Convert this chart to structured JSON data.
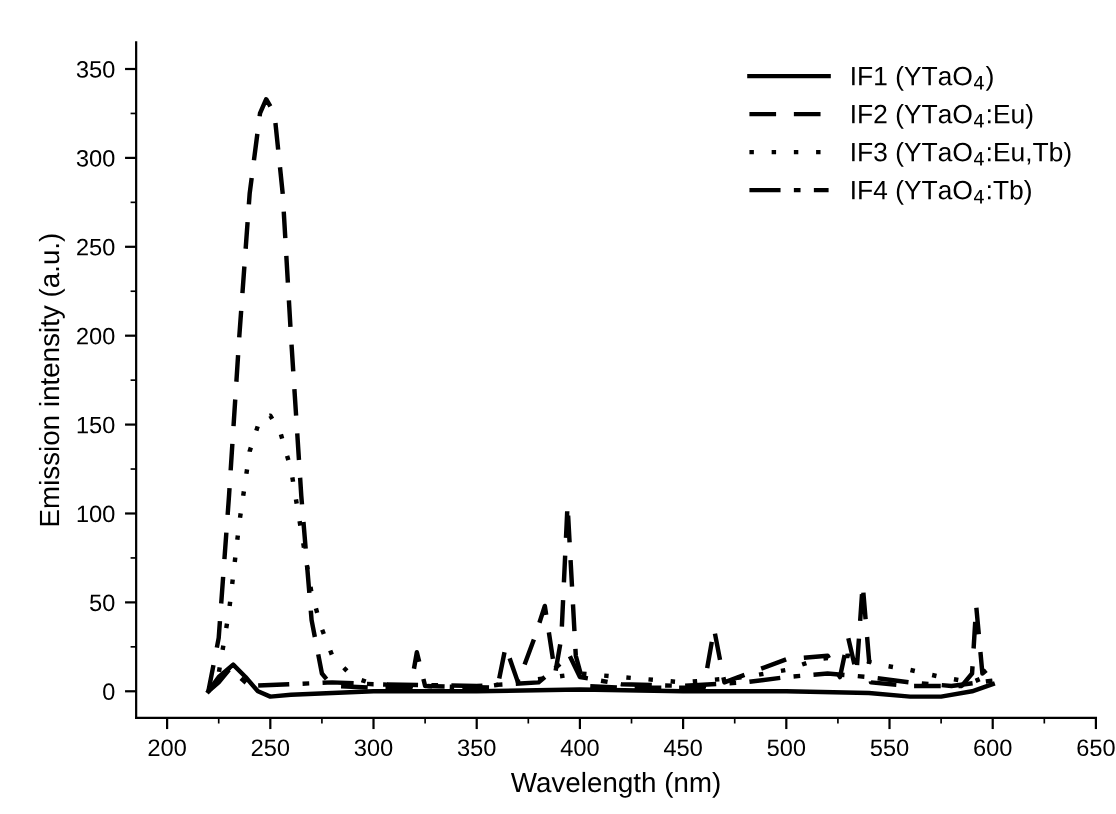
{
  "chart_data": {
    "type": "line",
    "xlabel": "Wavelength (nm)",
    "ylabel": "Emission intensity (a.u.)",
    "xlim": [
      185,
      650
    ],
    "ylim": [
      -15,
      365
    ],
    "xticks": [
      200,
      250,
      300,
      350,
      400,
      450,
      500,
      550,
      600,
      650
    ],
    "yticks": [
      0,
      50,
      100,
      150,
      200,
      250,
      300,
      350
    ],
    "grid": false,
    "legend": "top right",
    "marker": "none",
    "series": [
      {
        "name": "IF1 (YTaO$_{4}$)",
        "color": "#000000",
        "line_style": "solid",
        "x": [
          220,
          225,
          232,
          238,
          244,
          250,
          260,
          280,
          300,
          350,
          400,
          450,
          500,
          540,
          560,
          575,
          590,
          600
        ],
        "values": [
          0,
          8,
          15,
          8,
          0,
          -3,
          -2,
          -1,
          0,
          0,
          1,
          0,
          0,
          -1,
          -3,
          -3,
          0,
          4
        ]
      },
      {
        "name": "IF2 (YTaO$_{4}$:Eu)",
        "color": "#000000",
        "line_style": "dashed",
        "x": [
          220,
          225,
          230,
          235,
          240,
          245,
          248,
          252,
          256,
          260,
          265,
          270,
          275,
          280,
          300,
          318,
          321,
          325,
          360,
          364,
          370,
          378,
          383,
          388,
          391,
          394,
          398,
          402,
          420,
          460,
          465,
          470,
          500,
          520,
          526,
          530,
          534,
          537,
          541,
          560,
          585,
          590,
          592,
          595,
          600
        ],
        "values": [
          0,
          30,
          110,
          200,
          280,
          325,
          333,
          325,
          280,
          200,
          110,
          40,
          10,
          3,
          2,
          2,
          22,
          3,
          2,
          25,
          5,
          30,
          48,
          10,
          30,
          105,
          20,
          3,
          2,
          2,
          35,
          5,
          18,
          20,
          8,
          30,
          10,
          60,
          5,
          3,
          3,
          10,
          48,
          10,
          15
        ]
      },
      {
        "name": "IF3 (YTaO$_{4}$:Eu,Tb)",
        "color": "#000000",
        "line_style": "dotted",
        "x": [
          220,
          225,
          230,
          235,
          240,
          245,
          250,
          255,
          260,
          265,
          270,
          275,
          280,
          290,
          300,
          350,
          400,
          450,
          480,
          500,
          515,
          530,
          545,
          560,
          575,
          590,
          600
        ],
        "values": [
          0,
          10,
          45,
          95,
          135,
          153,
          155,
          145,
          125,
          90,
          55,
          35,
          20,
          8,
          4,
          2,
          10,
          5,
          8,
          12,
          18,
          20,
          15,
          12,
          8,
          5,
          10
        ]
      },
      {
        "name": "IF4 (YTaO$_{4}$:Tb)",
        "color": "#000000",
        "line_style": "dashdot",
        "x": [
          220,
          225,
          230,
          235,
          240,
          260,
          280,
          300,
          350,
          380,
          390,
          395,
          400,
          420,
          450,
          480,
          500,
          520,
          540,
          560,
          580,
          600
        ],
        "values": [
          0,
          5,
          12,
          8,
          3,
          4,
          5,
          4,
          3,
          5,
          15,
          20,
          8,
          4,
          3,
          5,
          8,
          10,
          8,
          5,
          3,
          6
        ]
      }
    ]
  }
}
